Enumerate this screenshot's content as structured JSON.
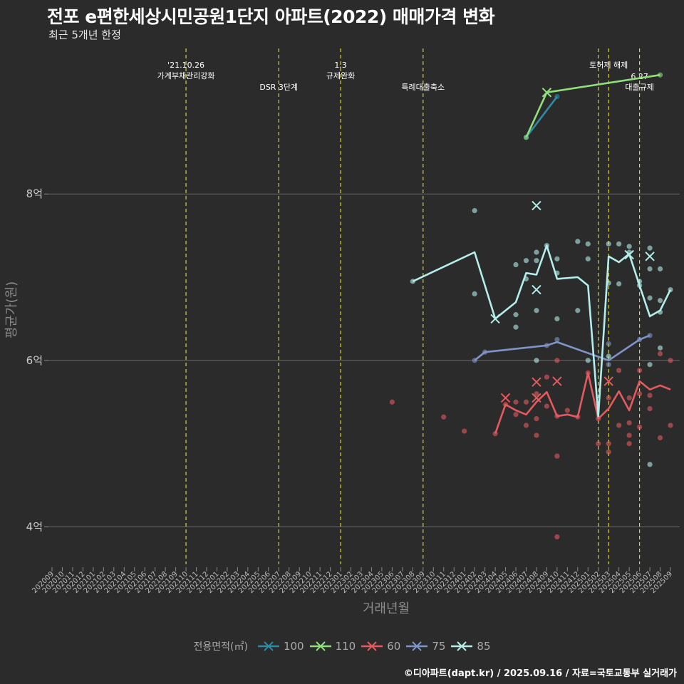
{
  "page": {
    "title": "전포 e편한세상시민공원1단지 아파트(2022) 매매가격 변화",
    "subtitle": "최근 5개년 한정",
    "caption": "©디아파트(dapt.kr) / 2025.09.16 / 자료=국토교통부 실거래가"
  },
  "chart_data": {
    "type": "line",
    "xlabel": "거래년월",
    "ylabel": "평균가(원)",
    "ylim": [
      3.55,
      9.8
    ],
    "yticks": [
      {
        "value": 4,
        "label": "4억"
      },
      {
        "value": 6,
        "label": "6억"
      },
      {
        "value": 8,
        "label": "8억"
      }
    ],
    "categories": [
      "202009",
      "202010",
      "202011",
      "202012",
      "202101",
      "202102",
      "202103",
      "202104",
      "202105",
      "202106",
      "202107",
      "202108",
      "202109",
      "202110",
      "202111",
      "202112",
      "202201",
      "202202",
      "202203",
      "202204",
      "202205",
      "202206",
      "202207",
      "202208",
      "202209",
      "202210",
      "202211",
      "202212",
      "202301",
      "202302",
      "202303",
      "202304",
      "202305",
      "202306",
      "202307",
      "202308",
      "202309",
      "202310",
      "202311",
      "202312",
      "202401",
      "202402",
      "202403",
      "202404",
      "202405",
      "202406",
      "202407",
      "202408",
      "202409",
      "202410",
      "202411",
      "202412",
      "202501",
      "202502",
      "202503",
      "202504",
      "202505",
      "202506",
      "202507",
      "202508",
      "202509"
    ],
    "events": [
      {
        "x": "202110",
        "label": "'21.10.26\n가계부채관리강화",
        "row": 0
      },
      {
        "x": "202207",
        "label": "DSR 3단계",
        "row": 1
      },
      {
        "x": "202301",
        "label": "1.3\n규제완화",
        "row": 0
      },
      {
        "x": "202309",
        "label": "특례대출축소",
        "row": 1
      },
      {
        "x": "202502",
        "label": "",
        "row": 0
      },
      {
        "x": "202503",
        "label": "토허제 해제",
        "row": 0
      },
      {
        "x": "202506",
        "label": "6.27\n대출규제",
        "row": 1
      }
    ],
    "legend_title": "전용면적(㎡)",
    "series": [
      {
        "name": "100",
        "color": "#2e8ba6",
        "line": [
          [
            "202407",
            8.68
          ],
          [
            "202410",
            9.17
          ]
        ],
        "points": [
          [
            "202407",
            8.68
          ],
          [
            "202410",
            9.17
          ]
        ],
        "x_marks": []
      },
      {
        "name": "110",
        "color": "#8fe07a",
        "line": [
          [
            "202407",
            8.68
          ],
          [
            "202409",
            9.22
          ],
          [
            "202508",
            9.43
          ]
        ],
        "points": [
          [
            "202407",
            8.68
          ],
          [
            "202508",
            9.43
          ]
        ],
        "x_marks": [
          [
            "202409",
            9.22
          ]
        ]
      },
      {
        "name": "60",
        "color": "#e45a5e",
        "line": [
          [
            "202404",
            5.12
          ],
          [
            "202405",
            5.47
          ],
          [
            "202406",
            5.4
          ],
          [
            "202407",
            5.35
          ],
          [
            "202408",
            5.5
          ],
          [
            "202409",
            5.62
          ],
          [
            "202410",
            5.33
          ],
          [
            "202411",
            5.35
          ],
          [
            "202412",
            5.32
          ],
          [
            "202501",
            5.85
          ],
          [
            "202502",
            5.3
          ],
          [
            "202503",
            5.42
          ],
          [
            "202504",
            5.63
          ],
          [
            "202505",
            5.4
          ],
          [
            "202506",
            5.75
          ],
          [
            "202507",
            5.65
          ],
          [
            "202508",
            5.7
          ],
          [
            "202509",
            5.65
          ]
        ],
        "points": [
          [
            "202306",
            5.5
          ],
          [
            "202311",
            5.32
          ],
          [
            "202401",
            5.15
          ],
          [
            "202404",
            5.12
          ],
          [
            "202405",
            5.47
          ],
          [
            "202406",
            5.35
          ],
          [
            "202406",
            5.5
          ],
          [
            "202407",
            5.22
          ],
          [
            "202407",
            5.5
          ],
          [
            "202408",
            5.1
          ],
          [
            "202408",
            5.3
          ],
          [
            "202408",
            5.6
          ],
          [
            "202409",
            5.45
          ],
          [
            "202409",
            5.8
          ],
          [
            "202410",
            3.88
          ],
          [
            "202410",
            4.85
          ],
          [
            "202410",
            5.33
          ],
          [
            "202410",
            6.0
          ],
          [
            "202411",
            5.4
          ],
          [
            "202412",
            5.32
          ],
          [
            "202501",
            5.85
          ],
          [
            "202502",
            5.0
          ],
          [
            "202502",
            5.3
          ],
          [
            "202503",
            4.9
          ],
          [
            "202503",
            5.0
          ],
          [
            "202503",
            5.55
          ],
          [
            "202504",
            5.22
          ],
          [
            "202504",
            5.88
          ],
          [
            "202505",
            5.0
          ],
          [
            "202505",
            5.1
          ],
          [
            "202505",
            5.25
          ],
          [
            "202505",
            5.55
          ],
          [
            "202506",
            5.2
          ],
          [
            "202506",
            5.6
          ],
          [
            "202506",
            5.88
          ],
          [
            "202507",
            5.42
          ],
          [
            "202507",
            5.58
          ],
          [
            "202508",
            5.07
          ],
          [
            "202508",
            6.08
          ],
          [
            "202509",
            5.22
          ],
          [
            "202509",
            6.0
          ]
        ],
        "x_marks": [
          [
            "202405",
            5.55
          ],
          [
            "202408",
            5.74
          ],
          [
            "202408",
            5.55
          ],
          [
            "202410",
            5.75
          ],
          [
            "202503",
            5.75
          ]
        ]
      },
      {
        "name": "75",
        "color": "#7f94c8",
        "line": [
          [
            "202402",
            6.0
          ],
          [
            "202403",
            6.1
          ],
          [
            "202409",
            6.18
          ],
          [
            "202410",
            6.22
          ],
          [
            "202503",
            6.0
          ],
          [
            "202506",
            6.25
          ],
          [
            "202507",
            6.3
          ]
        ],
        "points": [
          [
            "202402",
            6.0
          ],
          [
            "202403",
            6.1
          ],
          [
            "202409",
            6.18
          ],
          [
            "202410",
            6.25
          ],
          [
            "202503",
            5.95
          ],
          [
            "202503",
            6.2
          ],
          [
            "202506",
            6.25
          ],
          [
            "202507",
            6.3
          ]
        ],
        "x_marks": []
      },
      {
        "name": "85",
        "color": "#b4eeea",
        "line": [
          [
            "202308",
            6.95
          ],
          [
            "202402",
            7.3
          ],
          [
            "202404",
            6.5
          ],
          [
            "202406",
            6.7
          ],
          [
            "202407",
            7.05
          ],
          [
            "202408",
            7.03
          ],
          [
            "202409",
            7.38
          ],
          [
            "202410",
            6.98
          ],
          [
            "202412",
            7.0
          ],
          [
            "202501",
            6.9
          ],
          [
            "202502",
            5.33
          ],
          [
            "202503",
            7.25
          ],
          [
            "202504",
            7.18
          ],
          [
            "202505",
            7.28
          ],
          [
            "202506",
            6.9
          ],
          [
            "202507",
            6.53
          ],
          [
            "202508",
            6.6
          ],
          [
            "202509",
            6.85
          ]
        ],
        "points": [
          [
            "202308",
            6.95
          ],
          [
            "202402",
            7.8
          ],
          [
            "202402",
            6.8
          ],
          [
            "202406",
            6.55
          ],
          [
            "202406",
            7.15
          ],
          [
            "202406",
            6.4
          ],
          [
            "202407",
            7.2
          ],
          [
            "202407",
            6.98
          ],
          [
            "202408",
            7.3
          ],
          [
            "202408",
            7.2
          ],
          [
            "202408",
            6.6
          ],
          [
            "202408",
            6.0
          ],
          [
            "202409",
            7.38
          ],
          [
            "202410",
            7.22
          ],
          [
            "202410",
            7.05
          ],
          [
            "202410",
            6.5
          ],
          [
            "202412",
            7.43
          ],
          [
            "202412",
            6.6
          ],
          [
            "202501",
            7.4
          ],
          [
            "202501",
            7.22
          ],
          [
            "202501",
            6.0
          ],
          [
            "202503",
            7.4
          ],
          [
            "202503",
            6.93
          ],
          [
            "202503",
            6.05
          ],
          [
            "202504",
            7.4
          ],
          [
            "202504",
            6.92
          ],
          [
            "202505",
            7.37
          ],
          [
            "202505",
            7.3
          ],
          [
            "202506",
            6.95
          ],
          [
            "202506",
            6.9
          ],
          [
            "202507",
            7.35
          ],
          [
            "202507",
            7.1
          ],
          [
            "202507",
            6.75
          ],
          [
            "202507",
            5.95
          ],
          [
            "202507",
            4.75
          ],
          [
            "202508",
            7.1
          ],
          [
            "202508",
            6.72
          ],
          [
            "202508",
            6.58
          ],
          [
            "202508",
            6.15
          ],
          [
            "202509",
            6.85
          ]
        ],
        "x_marks": [
          [
            "202404",
            6.5
          ],
          [
            "202408",
            7.86
          ],
          [
            "202408",
            6.85
          ],
          [
            "202505",
            7.27
          ],
          [
            "202507",
            7.25
          ]
        ]
      }
    ]
  }
}
